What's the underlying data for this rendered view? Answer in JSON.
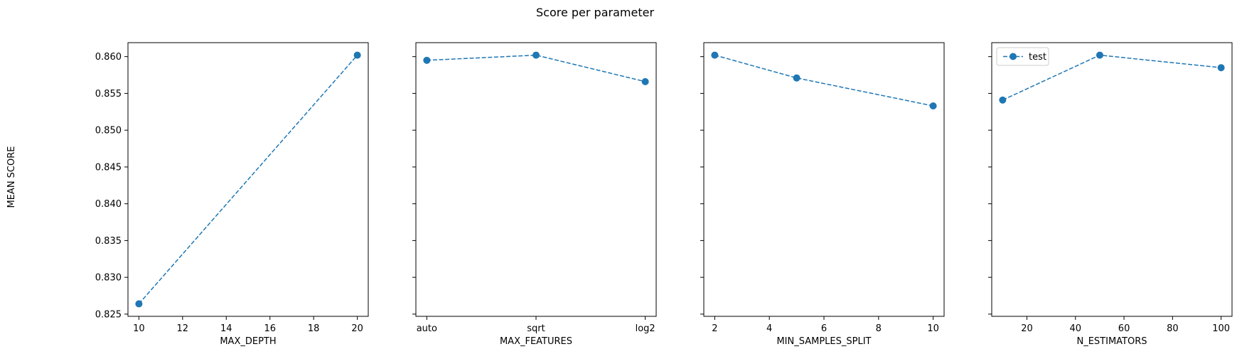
{
  "figure": {
    "title": "Score per parameter",
    "ylabel": "MEAN SCORE"
  },
  "chart_data": [
    {
      "type": "line",
      "xlabel": "MAX_DEPTH",
      "x": [
        10,
        20
      ],
      "series": [
        {
          "name": "test",
          "values": [
            0.8264,
            0.8602
          ]
        }
      ],
      "xticks": [
        10,
        12,
        14,
        16,
        18,
        20
      ],
      "xlim": [
        9.5,
        20.5
      ],
      "yticks": [
        "0.825",
        "0.830",
        "0.835",
        "0.840",
        "0.845",
        "0.850",
        "0.855",
        "0.860"
      ],
      "ylim": [
        0.8247,
        0.8619
      ],
      "color": "#1f77b4",
      "linestyle": "dashed",
      "marker": "circle",
      "grid": false
    },
    {
      "type": "line",
      "xlabel": "MAX_FEATURES",
      "categories": [
        "auto",
        "sqrt",
        "log2"
      ],
      "series": [
        {
          "name": "test",
          "values": [
            0.8595,
            0.8602,
            0.8566
          ]
        }
      ],
      "ylim": [
        0.8247,
        0.8619
      ],
      "color": "#1f77b4",
      "linestyle": "dashed",
      "marker": "circle",
      "grid": false
    },
    {
      "type": "line",
      "xlabel": "MIN_SAMPLES_SPLIT",
      "x": [
        2,
        5,
        10
      ],
      "series": [
        {
          "name": "test",
          "values": [
            0.8602,
            0.8571,
            0.8533
          ]
        }
      ],
      "xticks": [
        2,
        4,
        6,
        8,
        10
      ],
      "xlim": [
        1.6,
        10.4
      ],
      "ylim": [
        0.8247,
        0.8619
      ],
      "color": "#1f77b4",
      "linestyle": "dashed",
      "marker": "circle",
      "grid": false
    },
    {
      "type": "line",
      "xlabel": "N_ESTIMATORS",
      "x": [
        10,
        50,
        100
      ],
      "series": [
        {
          "name": "test",
          "values": [
            0.8541,
            0.8602,
            0.8585
          ]
        }
      ],
      "xticks": [
        20,
        40,
        60,
        80,
        100
      ],
      "xlim": [
        5.5,
        104.5
      ],
      "ylim": [
        0.8247,
        0.8619
      ],
      "color": "#1f77b4",
      "linestyle": "dashed",
      "marker": "circle",
      "grid": false,
      "legend": {
        "labels": [
          "test"
        ],
        "placement": "upper-left"
      }
    }
  ]
}
